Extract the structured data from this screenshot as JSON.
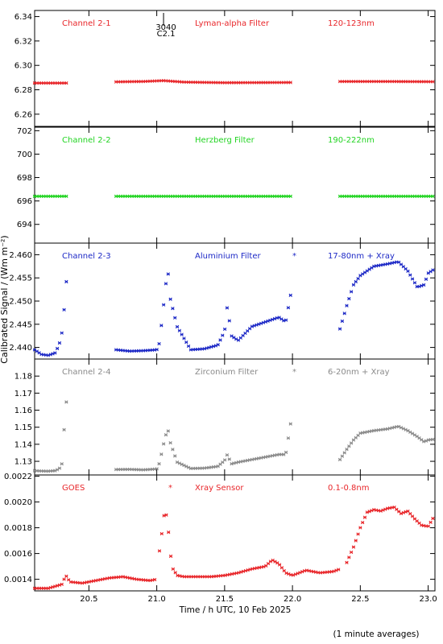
{
  "figure": {
    "ylabel": "Calibrated Signal / (Wm m⁻²)",
    "xlabel": "Time / h UTC, 10 Feb 2025",
    "footnote": "(1 minute averages)",
    "flare_marker": {
      "label_top": "3040",
      "label_bottom": "C2.1",
      "x": 21.05
    }
  },
  "chart_data": [
    {
      "type": "scatter",
      "title_left": "Channel 2-1",
      "title_mid": "Lyman-alpha Filter",
      "title_right": "120-123nm",
      "color": "#e8262a",
      "xlim": [
        20.1,
        23.05
      ],
      "ylim": [
        6.25,
        6.345
      ],
      "yticks": [
        "6.26",
        "6.28",
        "6.30",
        "6.32",
        "6.34"
      ],
      "xticks": [
        20.5,
        21.0,
        21.5,
        22.0,
        22.5,
        23.0
      ],
      "segments": [
        {
          "x": [
            20.1,
            20.35
          ],
          "y": [
            6.2855,
            6.2855
          ]
        },
        {
          "x": [
            20.7,
            20.9,
            21.05,
            21.2,
            21.5,
            22.0
          ],
          "y": [
            6.2865,
            6.2868,
            6.2875,
            6.2863,
            6.2858,
            6.286
          ]
        },
        {
          "x": [
            22.35,
            22.7,
            23.05
          ],
          "y": [
            6.2868,
            6.2868,
            6.2866
          ]
        }
      ]
    },
    {
      "type": "scatter",
      "title_left": "Channel 2-2",
      "title_mid": "Herzberg Filter",
      "title_right": "190-222nm",
      "color": "#22d422",
      "xlim": [
        20.1,
        23.05
      ],
      "ylim": [
        692.4,
        702.3
      ],
      "yticks": [
        "694",
        "696",
        "698",
        "700",
        "702"
      ],
      "xticks": [
        20.5,
        21.0,
        21.5,
        22.0,
        22.5,
        23.0
      ],
      "segments": [
        {
          "x": [
            20.1,
            20.35
          ],
          "y": [
            696.4,
            696.4
          ]
        },
        {
          "x": [
            20.7,
            22.0
          ],
          "y": [
            696.4,
            696.4
          ]
        },
        {
          "x": [
            22.35,
            23.05
          ],
          "y": [
            696.4,
            696.4
          ]
        }
      ]
    },
    {
      "type": "scatter",
      "title_left": "Channel 2-3",
      "title_mid": "Aluminium Filter",
      "title_right": "17-80nm + Xray",
      "color": "#1c28c6",
      "xlim": [
        20.1,
        23.05
      ],
      "ylim": [
        2.4375,
        2.4625
      ],
      "yticks": [
        "2.440",
        "2.445",
        "2.450",
        "2.455",
        "2.460"
      ],
      "xticks": [
        20.5,
        21.0,
        21.5,
        22.0,
        22.5,
        23.0
      ],
      "segments": [
        {
          "x": [
            20.1,
            20.15,
            20.2,
            20.25,
            20.28,
            20.3,
            20.32,
            20.34
          ],
          "y": [
            2.4395,
            2.4385,
            2.4383,
            2.4388,
            2.4405,
            2.443,
            2.449,
            2.4565
          ]
        },
        {
          "x": [
            20.7,
            20.8,
            20.9,
            21.0,
            21.02,
            21.05,
            21.08,
            21.1,
            21.15,
            21.25,
            21.35,
            21.45,
            21.5,
            21.52,
            21.55,
            21.6,
            21.7,
            21.8,
            21.9,
            21.95,
            22.0
          ],
          "y": [
            2.4395,
            2.4392,
            2.4393,
            2.4395,
            2.441,
            2.449,
            2.4572,
            2.4505,
            2.4445,
            2.4395,
            2.4397,
            2.4405,
            2.4435,
            2.449,
            2.4425,
            2.4415,
            2.4445,
            2.4455,
            2.4465,
            2.4455,
            2.4535
          ]
        },
        {
          "x": [
            22.35,
            22.4,
            22.45,
            22.5,
            22.6,
            22.7,
            22.78,
            22.85,
            22.92,
            22.97,
            23.0,
            23.05
          ],
          "y": [
            2.444,
            2.449,
            2.4535,
            2.4555,
            2.4575,
            2.458,
            2.4585,
            2.4565,
            2.453,
            2.4535,
            2.456,
            2.457
          ]
        }
      ]
    },
    {
      "type": "scatter",
      "title_left": "Channel 2-4",
      "title_mid": "Zirconium Filter",
      "title_right": "6-20nm + Xray",
      "color": "#8a8a8a",
      "xlim": [
        20.1,
        23.05
      ],
      "ylim": [
        1.122,
        1.19
      ],
      "yticks": [
        "1.13",
        "1.14",
        "1.15",
        "1.16",
        "1.17",
        "1.18"
      ],
      "xticks": [
        20.5,
        21.0,
        21.5,
        22.0,
        22.5,
        23.0
      ],
      "segments": [
        {
          "x": [
            20.1,
            20.15,
            20.2,
            20.25,
            20.28,
            20.3,
            20.32,
            20.34
          ],
          "y": [
            1.1245,
            1.1243,
            1.1242,
            1.1245,
            1.1255,
            1.128,
            1.152,
            1.1705
          ]
        },
        {
          "x": [
            20.7,
            20.8,
            20.9,
            21.0,
            21.02,
            21.05,
            21.08,
            21.1,
            21.15,
            21.25,
            21.35,
            21.45,
            21.5,
            21.52,
            21.55,
            21.6,
            21.7,
            21.8,
            21.9,
            21.95,
            22.0
          ],
          "y": [
            1.1252,
            1.1253,
            1.125,
            1.1255,
            1.129,
            1.14,
            1.1495,
            1.141,
            1.1295,
            1.1258,
            1.126,
            1.127,
            1.1305,
            1.134,
            1.1285,
            1.1295,
            1.131,
            1.1325,
            1.134,
            1.134,
            1.159
          ]
        },
        {
          "x": [
            22.35,
            22.4,
            22.45,
            22.5,
            22.6,
            22.7,
            22.78,
            22.85,
            22.92,
            22.97,
            23.0,
            23.05
          ],
          "y": [
            1.131,
            1.137,
            1.1425,
            1.1465,
            1.148,
            1.149,
            1.1505,
            1.148,
            1.1445,
            1.1415,
            1.1425,
            1.143
          ]
        }
      ]
    },
    {
      "type": "scatter",
      "title_left": "GOES",
      "title_mid": "Xray Sensor",
      "title_right": "0.1-0.8nm",
      "color": "#e8262a",
      "xlim": [
        20.1,
        23.05
      ],
      "ylim": [
        0.00131,
        0.00221
      ],
      "yticks": [
        "0.0014",
        "0.0016",
        "0.0018",
        "0.0020",
        "0.0022"
      ],
      "xticks": [
        20.5,
        21.0,
        21.5,
        22.0,
        22.5,
        23.0
      ],
      "xticklabels": [
        "20.5",
        "21.0",
        "21.5",
        "22.0",
        "22.5",
        "23.0"
      ],
      "segments": [
        {
          "x": [
            20.1,
            20.2,
            20.3,
            20.33,
            20.36,
            20.45,
            20.55,
            20.65,
            20.75,
            20.85,
            20.95,
            21.0
          ],
          "y": [
            0.00133,
            0.00133,
            0.00136,
            0.00143,
            0.00138,
            0.00137,
            0.00139,
            0.00141,
            0.00142,
            0.0014,
            0.00139,
            0.0014
          ]
        },
        {
          "x": [
            21.02,
            21.04,
            21.06,
            21.08,
            21.1,
            21.12,
            21.15,
            21.2,
            21.3,
            21.4,
            21.5,
            21.6,
            21.7,
            21.8,
            21.85,
            21.9,
            21.95,
            22.0,
            22.1,
            22.2,
            22.3,
            22.35
          ],
          "y": [
            0.00162,
            0.00178,
            0.00195,
            0.00185,
            0.0016,
            0.00148,
            0.00143,
            0.00142,
            0.00142,
            0.00142,
            0.00143,
            0.00145,
            0.00148,
            0.0015,
            0.00155,
            0.00152,
            0.00145,
            0.00143,
            0.00147,
            0.00145,
            0.00146,
            0.00148
          ]
        },
        {
          "x": [
            22.4,
            22.45,
            22.5,
            22.55,
            22.6,
            22.65,
            22.7,
            22.75,
            22.8,
            22.85,
            22.9,
            22.95,
            23.0,
            23.05
          ],
          "y": [
            0.00153,
            0.00165,
            0.0018,
            0.00192,
            0.00194,
            0.00193,
            0.00195,
            0.00196,
            0.00191,
            0.00193,
            0.00187,
            0.00182,
            0.00181,
            0.0019
          ]
        }
      ]
    }
  ]
}
